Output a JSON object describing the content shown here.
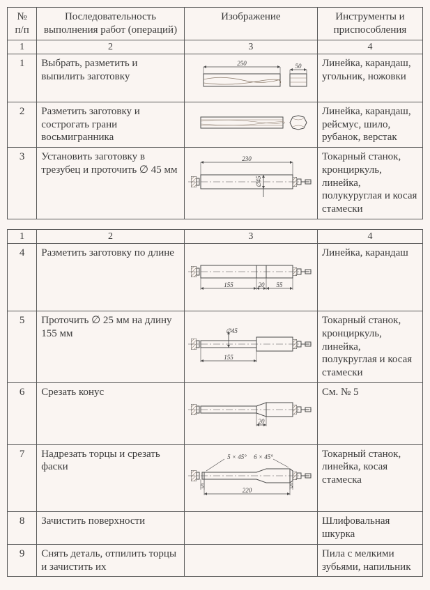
{
  "headers": {
    "num": "№ п/п",
    "ops": "Последовательность выполнения работ (операций)",
    "img": "Изображение",
    "tools": "Инструменты и приспособления",
    "sub1": "1",
    "sub2": "2",
    "sub3": "3",
    "sub4": "4"
  },
  "rows1": [
    {
      "n": "1",
      "op": "Выбрать, разметить и выпилить заготовку",
      "tools": "Линейка, карандаш, угольник, ножовки",
      "img": {
        "type": "blank",
        "len_label": "250",
        "end_label": "50"
      }
    },
    {
      "n": "2",
      "op": "Разметить заготовку и сострогать грани восьмигранника",
      "tools": "Линейка, карандаш, рейсмус, шило, рубанок, верстак",
      "img": {
        "type": "octagon_blank"
      }
    },
    {
      "n": "3",
      "op": "Установить заготовку в трезубец и проточить ∅ 45 мм",
      "tools": "Токарный станок, кронциркуль, линейка, полукуруглая и косая стамески",
      "img": {
        "type": "turned",
        "len_label": "230",
        "dia_label": "∅45"
      }
    }
  ],
  "rows2": [
    {
      "n": "4",
      "op": "Разметить заготовку по длине",
      "tools": "Линейка, карандаш",
      "img": {
        "type": "marked",
        "d1": "155",
        "d2": "20",
        "d3": "55"
      }
    },
    {
      "n": "5",
      "op": "Проточить ∅ 25 мм на длину 155 мм",
      "tools": "Токарный станок, кронциркуль, линейка, полукруглая и косая стамески",
      "img": {
        "type": "stepped",
        "len_label": "155",
        "dia_label": "∅45"
      }
    },
    {
      "n": "6",
      "op": "Срезать конус",
      "tools": "См. № 5",
      "img": {
        "type": "coned",
        "d2": "20"
      }
    },
    {
      "n": "7",
      "op": "Надрезать торцы и срезать фаски",
      "tools": "Токарный станок, линейка, косая стамеска",
      "img": {
        "type": "chamfer",
        "ch1": "5 × 45°",
        "ch2": "6 × 45°",
        "len_label": "220",
        "end1": "5",
        "end2": "5"
      }
    },
    {
      "n": "8",
      "op": "Зачистить поверхности",
      "tools": "Шлифовальная шкурка",
      "img": {
        "type": "none"
      }
    },
    {
      "n": "9",
      "op": "Снять деталь, отпилить торцы и зачистить их",
      "tools": "Пила с мелкими зубьями, напильник",
      "img": {
        "type": "none"
      }
    }
  ],
  "style": {
    "stroke": "#4a4a4a",
    "hatch": "#8a7a6a",
    "text": "#3a3a3a",
    "label_fontsize": 9
  }
}
